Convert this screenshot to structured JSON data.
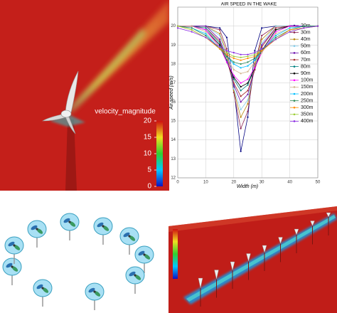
{
  "chart_data": {
    "type": "line",
    "title": "AIR SPEED IN THE WAKE",
    "xlabel": "Width (m)",
    "ylabel": "Air speed (m/s)",
    "x": [
      0,
      5,
      10,
      15,
      17.5,
      20,
      22.5,
      25,
      27.5,
      30,
      35,
      40,
      45,
      50
    ],
    "xlim": [
      0,
      50
    ],
    "xticks": [
      0,
      10,
      20,
      30,
      40,
      50
    ],
    "ylim": [
      12,
      21
    ],
    "yticks": [
      12,
      13,
      14,
      15,
      16,
      17,
      18,
      19,
      20
    ],
    "grid": true,
    "legend": "upper right",
    "series": [
      {
        "name": "20m",
        "color": "#000080",
        "values": [
          20.0,
          20.0,
          20.0,
          19.9,
          19.4,
          16.8,
          13.4,
          15.2,
          18.7,
          19.9,
          20.0,
          20.0,
          20.0,
          20.0
        ]
      },
      {
        "name": "30m",
        "color": "#8b2252",
        "values": [
          20.0,
          20.0,
          20.0,
          19.8,
          18.8,
          16.5,
          14.6,
          15.5,
          18.0,
          19.5,
          20.0,
          20.0,
          20.0,
          20.0
        ]
      },
      {
        "name": "40m",
        "color": "#b8860b",
        "values": [
          20.0,
          20.0,
          20.0,
          19.6,
          18.6,
          16.6,
          15.2,
          15.9,
          17.9,
          19.3,
          20.0,
          20.0,
          20.0,
          20.0
        ]
      },
      {
        "name": "50m",
        "color": "#87ceeb",
        "values": [
          20.0,
          20.0,
          20.0,
          19.5,
          18.4,
          16.7,
          15.6,
          16.1,
          17.8,
          19.1,
          20.0,
          20.0,
          20.0,
          20.0
        ]
      },
      {
        "name": "60m",
        "color": "#6a0dad",
        "values": [
          20.0,
          20.0,
          20.0,
          19.3,
          18.3,
          16.9,
          16.0,
          16.4,
          17.7,
          19.0,
          19.9,
          20.0,
          20.0,
          20.0
        ]
      },
      {
        "name": "70m",
        "color": "#a52a2a",
        "values": [
          20.0,
          20.0,
          19.9,
          19.2,
          18.2,
          17.0,
          16.3,
          16.6,
          17.7,
          18.9,
          19.9,
          20.0,
          20.0,
          20.0
        ]
      },
      {
        "name": "80m",
        "color": "#008080",
        "values": [
          20.0,
          20.0,
          19.9,
          19.1,
          18.2,
          17.2,
          16.6,
          16.9,
          17.8,
          18.7,
          19.8,
          20.0,
          20.0,
          20.0
        ]
      },
      {
        "name": "90m",
        "color": "#000000",
        "values": [
          20.0,
          20.0,
          19.8,
          19.0,
          18.1,
          17.3,
          16.8,
          17.0,
          17.8,
          18.7,
          19.8,
          20.0,
          20.0,
          20.0
        ]
      },
      {
        "name": "100m",
        "color": "#ff00ff",
        "values": [
          20.0,
          20.0,
          19.8,
          18.9,
          18.1,
          17.4,
          17.0,
          17.2,
          17.8,
          18.6,
          19.7,
          20.0,
          20.0,
          20.0
        ]
      },
      {
        "name": "150m",
        "color": "#d2b48c",
        "values": [
          20.0,
          20.0,
          19.7,
          18.9,
          18.3,
          17.7,
          17.5,
          17.6,
          18.1,
          18.6,
          19.6,
          19.9,
          20.0,
          20.0
        ]
      },
      {
        "name": "200m",
        "color": "#00bfff",
        "values": [
          20.0,
          19.9,
          19.6,
          18.8,
          18.4,
          18.0,
          17.8,
          17.9,
          18.2,
          18.7,
          19.5,
          19.9,
          20.0,
          20.0
        ]
      },
      {
        "name": "250m",
        "color": "#2e8b57",
        "values": [
          20.0,
          19.9,
          19.5,
          18.8,
          18.4,
          18.1,
          18.0,
          18.1,
          18.3,
          18.7,
          19.4,
          19.8,
          20.0,
          20.0
        ]
      },
      {
        "name": "300m",
        "color": "#ff8c00",
        "values": [
          20.0,
          19.8,
          19.4,
          18.8,
          18.5,
          18.3,
          18.2,
          18.3,
          18.4,
          18.7,
          19.3,
          19.8,
          19.9,
          20.0
        ]
      },
      {
        "name": "350m",
        "color": "#9acd32",
        "values": [
          20.0,
          19.8,
          19.4,
          18.9,
          18.6,
          18.4,
          18.35,
          18.4,
          18.5,
          18.8,
          19.3,
          19.7,
          19.9,
          20.0
        ]
      },
      {
        "name": "400m",
        "color": "#8a2be2",
        "values": [
          19.9,
          19.7,
          19.4,
          18.9,
          18.7,
          18.6,
          18.5,
          18.5,
          18.6,
          18.8,
          19.3,
          19.7,
          19.9,
          20.0
        ]
      }
    ]
  },
  "colorbar": {
    "title": "velocity_magnitude",
    "lim": [
      0,
      20
    ],
    "ticks": [
      0,
      5,
      10,
      15,
      20
    ]
  }
}
